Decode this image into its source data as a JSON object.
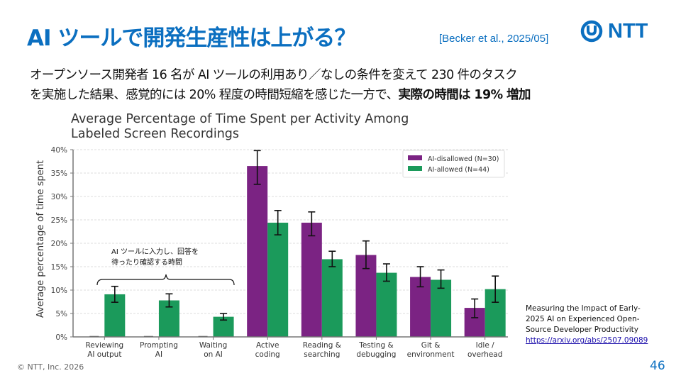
{
  "slide": {
    "title": "AI ツールで開発生産性は上がる？",
    "citation": "[Becker et al., 2025/05]",
    "logo_text": "NTT",
    "subtitle_line1": "オープンソース開発者 16 名が AI ツールの利用あり／なしの条件を変えて 230 件のタスク",
    "subtitle_line2_plain": "を実施した結果、感覚的には 20% 程度の時間短縮を感じた一方で、",
    "subtitle_line2_bold": "実際の時間は 19% 増加",
    "annotation_line1": "AI ツールに入力し、回答を",
    "annotation_line2": "待ったり確認する時間",
    "reference_line1": "Measuring the Impact of Early-",
    "reference_line2": "2025 AI on Experienced Open-",
    "reference_line3": "Source Developer Productivity",
    "reference_link": "https://arxiv.org/abs/2507.09089",
    "copyright": "© NTT, Inc.  2026",
    "page_number": "46",
    "colors": {
      "brand": "#0b6fc0",
      "disallowed": "#7b2383",
      "allowed": "#1b9a5b"
    }
  },
  "chart_data": {
    "type": "bar",
    "title_line1": "Average Percentage of Time Spent per Activity Among",
    "title_line2": "Labeled Screen Recordings",
    "xlabel": "",
    "ylabel": "Average percentage of time spent",
    "ylim": [
      0,
      40
    ],
    "yticks": [
      0,
      5,
      10,
      15,
      20,
      25,
      30,
      35,
      40
    ],
    "ytick_labels": [
      "0%",
      "5%",
      "10%",
      "15%",
      "20%",
      "25%",
      "30%",
      "35%",
      "40%"
    ],
    "grid": true,
    "legend_position": "top-right",
    "categories": [
      [
        "Reviewing",
        "AI output"
      ],
      [
        "Prompting",
        "AI"
      ],
      [
        "Waiting",
        "on AI"
      ],
      [
        "Active",
        "coding"
      ],
      [
        "Reading &",
        "searching"
      ],
      [
        "Testing &",
        "debugging"
      ],
      [
        "Git &",
        "environment"
      ],
      [
        "Idle /",
        "overhead"
      ]
    ],
    "series": [
      {
        "name": "AI-disallowed (N=30)",
        "color": "#7b2383",
        "values": [
          0,
          0,
          0,
          36.5,
          24.4,
          17.5,
          12.8,
          6.2
        ],
        "err_low": [
          0,
          0,
          0,
          32.6,
          21.6,
          14.6,
          10.7,
          4.1
        ],
        "err_high": [
          0,
          0,
          0,
          39.8,
          26.7,
          20.5,
          15.0,
          8.1
        ]
      },
      {
        "name": "AI-allowed (N=44)",
        "color": "#1b9a5b",
        "values": [
          9.1,
          7.8,
          4.3,
          24.4,
          16.6,
          13.7,
          12.2,
          10.2
        ],
        "err_low": [
          7.4,
          6.4,
          3.6,
          21.8,
          15.0,
          11.9,
          10.4,
          7.4
        ],
        "err_high": [
          10.8,
          9.2,
          5.0,
          27.0,
          18.3,
          15.6,
          14.3,
          13.0
        ]
      }
    ]
  }
}
